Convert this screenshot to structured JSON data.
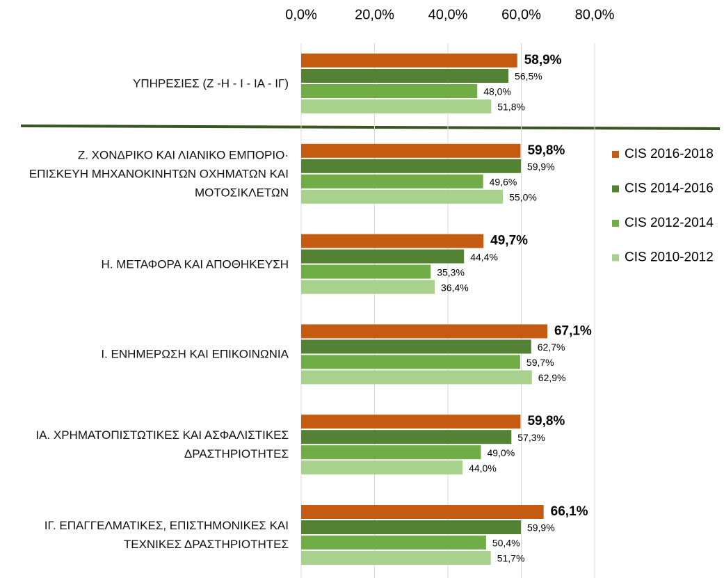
{
  "chart_data": {
    "type": "bar",
    "orientation": "horizontal",
    "categories": [
      "ΥΠΗΡΕΣΙΕΣ (Ζ -Η - Ι - ΙΑ - ΙΓ)",
      "Ζ. ΧΟΝΔΡΙΚΟ ΚΑΙ ΛΙΑΝΙΚΟ ΕΜΠΟΡΙΟ·\nΕΠΙΣΚΕΥΗ ΜΗΧΑΝΟΚΙΝΗΤΩΝ ΟΧΗΜΑΤΩΝ ΚΑΙ\nΜΟΤΟΣΙΚΛΕΤΩΝ",
      "Η. ΜΕΤΑΦΟΡΑ ΚΑΙ ΑΠΟΘΗΚΕΥΣΗ",
      "Ι. ΕΝΗΜΕΡΩΣΗ ΚΑΙ ΕΠΙΚΟΙΝΩΝΙΑ",
      "ΙΑ. ΧΡΗΜΑΤΟΠΙΣΤΩΤΙΚΕΣ ΚΑΙ ΑΣΦΑΛΙΣΤΙΚΕΣ\nΔΡΑΣΤΗΡΙΟΤΗΤΕΣ",
      "ΙΓ. ΕΠΑΓΓΕΛΜΑΤΙΚΕΣ, ΕΠΙΣΤΗΜΟΝΙΚΕΣ ΚΑΙ\nΤΕΧΝΙΚΕΣ ΔΡΑΣΤΗΡΙΟΤΗΤΕΣ"
    ],
    "series": [
      {
        "name": "CIS 2016-2018",
        "color": "#c55a11",
        "values": [
          58.9,
          59.8,
          49.7,
          67.1,
          59.8,
          66.1
        ],
        "value_labels": [
          "58,9%",
          "59,8%",
          "49,7%",
          "67,1%",
          "59,8%",
          "66,1%"
        ]
      },
      {
        "name": "CIS 2014-2016",
        "color": "#548235",
        "values": [
          56.5,
          59.9,
          44.4,
          62.7,
          57.3,
          59.9
        ],
        "value_labels": [
          "56,5%",
          "59,9%",
          "44,4%",
          "62,7%",
          "57,3%",
          "59,9%"
        ]
      },
      {
        "name": "CIS 2012-2014",
        "color": "#70ad47",
        "values": [
          48.0,
          49.6,
          35.3,
          59.7,
          49.0,
          50.4
        ],
        "value_labels": [
          "48,0%",
          "49,6%",
          "35,3%",
          "59,7%",
          "49,0%",
          "50,4%"
        ]
      },
      {
        "name": "CIS 2010-2012",
        "color": "#a9d18e",
        "values": [
          51.8,
          55.0,
          36.4,
          62.9,
          44.0,
          51.7
        ],
        "value_labels": [
          "51,8%",
          "55,0%",
          "36,4%",
          "62,9%",
          "44,0%",
          "51,7%"
        ]
      }
    ],
    "xlim": [
      0,
      80
    ],
    "xticks": [
      {
        "value": 0,
        "label": "0,0%"
      },
      {
        "value": 20,
        "label": "20,0%"
      },
      {
        "value": 40,
        "label": "40,0%"
      },
      {
        "value": 60,
        "label": "60,0%"
      },
      {
        "value": 80,
        "label": "80,0%"
      }
    ],
    "grid": true,
    "legend": "right"
  }
}
